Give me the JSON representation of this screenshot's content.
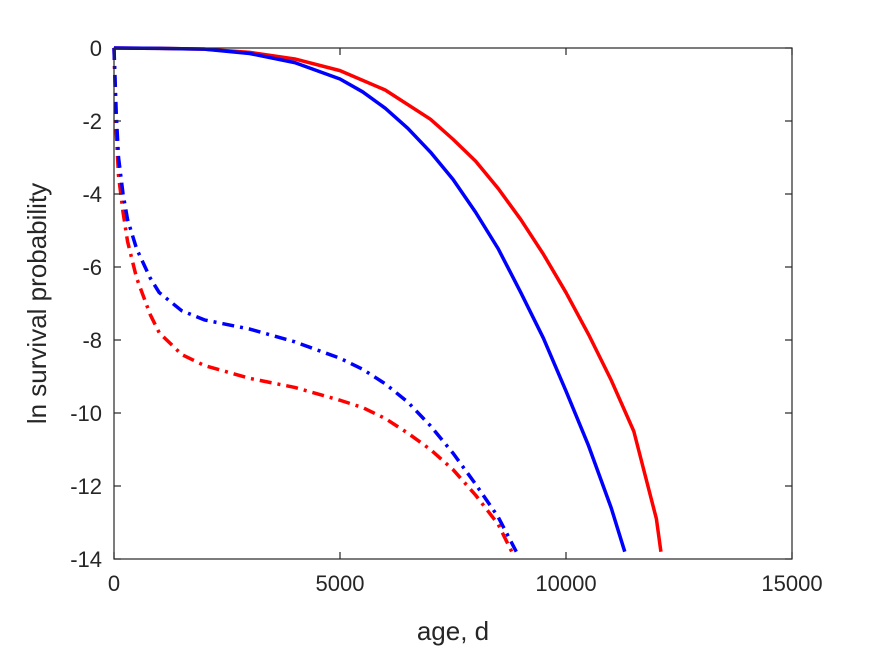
{
  "chart_data": {
    "type": "line",
    "title": "",
    "xlabel": "age, d",
    "ylabel": "ln survival probability",
    "xlim": [
      0,
      15000
    ],
    "ylim": [
      -14,
      0
    ],
    "xticks": [
      0,
      5000,
      10000,
      15000
    ],
    "yticks": [
      0,
      -2,
      -4,
      -6,
      -8,
      -10,
      -12,
      -14
    ],
    "xtick_labels": [
      "0",
      "5000",
      "10000",
      "15000"
    ],
    "ytick_labels": [
      "0",
      "-2",
      "-4",
      "-6",
      "-8",
      "-10",
      "-12",
      "-14"
    ],
    "grid": false,
    "legend": "none",
    "series": [
      {
        "color": "#ff0000",
        "style": "solid",
        "x": [
          0,
          1000,
          2000,
          3000,
          4000,
          5000,
          6000,
          7000,
          7500,
          8000,
          8500,
          9000,
          9500,
          10000,
          10500,
          11000,
          11500,
          12000,
          12100
        ],
        "y": [
          0,
          -0.01,
          -0.03,
          -0.12,
          -0.3,
          -0.62,
          -1.15,
          -1.95,
          -2.5,
          -3.1,
          -3.85,
          -4.7,
          -5.65,
          -6.7,
          -7.85,
          -9.1,
          -10.5,
          -12.9,
          -13.8
        ]
      },
      {
        "color": "#0000ff",
        "style": "solid",
        "x": [
          0,
          1000,
          2000,
          3000,
          4000,
          5000,
          5500,
          6000,
          6500,
          7000,
          7500,
          8000,
          8500,
          9000,
          9500,
          10000,
          10500,
          11000,
          11300
        ],
        "y": [
          0,
          -0.01,
          -0.03,
          -0.15,
          -0.4,
          -0.85,
          -1.2,
          -1.65,
          -2.2,
          -2.85,
          -3.6,
          -4.5,
          -5.5,
          -6.7,
          -7.95,
          -9.4,
          -10.9,
          -12.6,
          -13.8
        ]
      },
      {
        "color": "#ff0000",
        "style": "dashdot",
        "x": [
          0,
          50,
          100,
          200,
          300,
          500,
          800,
          1000,
          1500,
          2000,
          3000,
          4000,
          5000,
          5500,
          6000,
          6500,
          7000,
          7500,
          8000,
          8500,
          8800
        ],
        "y": [
          0,
          -2.3,
          -3.5,
          -4.5,
          -5.3,
          -6.3,
          -7.3,
          -7.8,
          -8.4,
          -8.7,
          -9.05,
          -9.3,
          -9.65,
          -9.85,
          -10.15,
          -10.55,
          -11.0,
          -11.55,
          -12.25,
          -13.05,
          -13.8
        ]
      },
      {
        "color": "#0000ff",
        "style": "dashdot",
        "x": [
          0,
          50,
          100,
          200,
          300,
          500,
          800,
          1000,
          1500,
          2000,
          3000,
          4000,
          5000,
          5500,
          6000,
          6500,
          7000,
          7500,
          8000,
          8500,
          8900
        ],
        "y": [
          0,
          -1.8,
          -3.0,
          -4.0,
          -4.7,
          -5.5,
          -6.3,
          -6.7,
          -7.2,
          -7.45,
          -7.7,
          -8.05,
          -8.5,
          -8.8,
          -9.2,
          -9.7,
          -10.35,
          -11.1,
          -11.95,
          -12.85,
          -13.8
        ]
      }
    ]
  }
}
